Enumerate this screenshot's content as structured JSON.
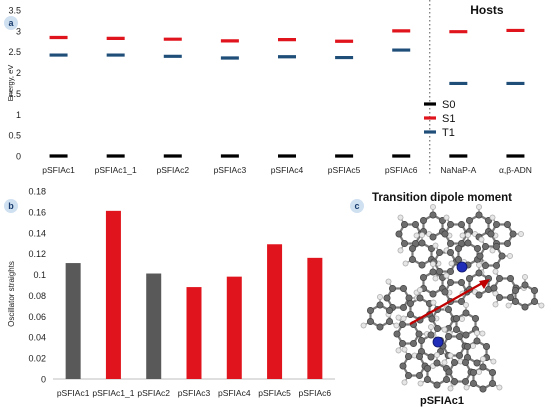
{
  "panels": {
    "a": {
      "badge": "a"
    },
    "b": {
      "badge": "b"
    },
    "c": {
      "badge": "c",
      "title": "Transition dipole moment",
      "molecule_label": "pSFIAc1"
    }
  },
  "chart_data": [
    {
      "type": "scatter",
      "panel": "a",
      "categories": [
        "pSFIAc1",
        "pSFIAc1_1",
        "pSFIAc2",
        "pSFIAc3",
        "pSFIAc4",
        "pSFIAc5",
        "pSFIAc6",
        "NaNaP-A",
        "α,β-ADN"
      ],
      "series": [
        {
          "name": "S0",
          "color": "#000000",
          "values": [
            0,
            0,
            0,
            0,
            0,
            0,
            0,
            0,
            0
          ]
        },
        {
          "name": "S1",
          "color": "#e0141c",
          "values": [
            2.84,
            2.82,
            2.8,
            2.76,
            2.79,
            2.75,
            3.0,
            2.98,
            3.01
          ]
        },
        {
          "name": "T1",
          "color": "#1f4e79",
          "values": [
            2.42,
            2.42,
            2.39,
            2.35,
            2.38,
            2.36,
            2.54,
            1.74,
            1.74
          ]
        }
      ],
      "ylabel": "Energy, eV",
      "ylim": [
        0,
        3.5
      ],
      "yticks": [
        "0",
        "0.5",
        "1",
        "1.5",
        "2",
        "2.5",
        "3",
        "3.5"
      ],
      "group_label": "Hosts",
      "grid": false,
      "legend": "bottom-right"
    },
    {
      "type": "bar",
      "panel": "b",
      "categories": [
        "pSFIAc1",
        "pSFIAc1_1",
        "pSFIAc2",
        "pSFIAc3",
        "pSFIAc4",
        "pSFIAc5",
        "pSFIAc6"
      ],
      "values": [
        0.111,
        0.161,
        0.101,
        0.088,
        0.098,
        0.129,
        0.116
      ],
      "colors": [
        "#595959",
        "#e0141c",
        "#595959",
        "#e0141c",
        "#e0141c",
        "#e0141c",
        "#e0141c"
      ],
      "ylabel": "Oscillator straights",
      "ylim": [
        0,
        0.18
      ],
      "yticks": [
        "0",
        "0.02",
        "0.04",
        "0.06",
        "0.08",
        "0.1",
        "0.12",
        "0.14",
        "0.16",
        "0.18"
      ],
      "grid": false
    }
  ]
}
